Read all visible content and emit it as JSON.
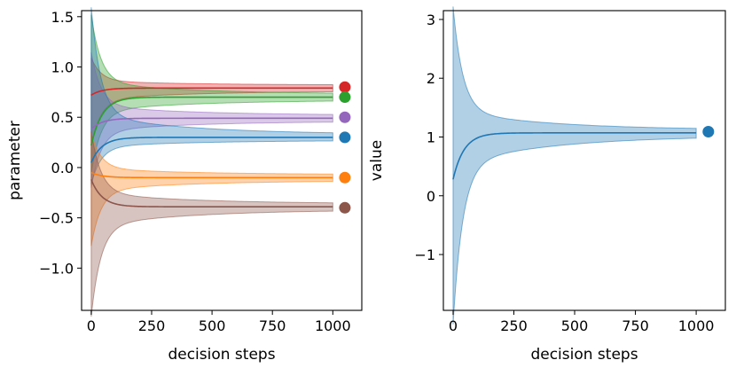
{
  "chart_data": [
    {
      "type": "line",
      "panel": "left",
      "xlabel": "decision steps",
      "ylabel": "parameter",
      "xlim": [
        -40,
        1120
      ],
      "ylim": [
        -1.42,
        1.56
      ],
      "xticks": [
        0,
        250,
        500,
        750,
        1000
      ],
      "yticks": [
        -1.0,
        -0.5,
        0.0,
        0.5,
        1.0,
        1.5
      ],
      "xtick_labels": [
        "0",
        "250",
        "500",
        "750",
        "1000"
      ],
      "ytick_labels": [
        "−1.0",
        "−0.5",
        "0.0",
        "0.5",
        "1.0",
        "1.5"
      ],
      "grid": false,
      "x_max": 1000,
      "series": [
        {
          "color": "#d62728",
          "start": 0.72,
          "end": 0.79,
          "band_start": [
            0.3,
            1.05
          ],
          "band_end_half": 0.03,
          "marker": {
            "x": 1050,
            "y": 0.8
          }
        },
        {
          "color": "#2ca02c",
          "start": 0.22,
          "end": 0.7,
          "band_start": [
            0.05,
            1.4
          ],
          "band_end_half": 0.03,
          "marker": {
            "x": 1050,
            "y": 0.7
          }
        },
        {
          "color": "#9467bd",
          "start": 0.38,
          "end": 0.49,
          "band_start": [
            -0.1,
            1.05
          ],
          "band_end_half": 0.03,
          "marker": {
            "x": 1050,
            "y": 0.5
          }
        },
        {
          "color": "#1f77b4",
          "start": 0.05,
          "end": 0.3,
          "band_start": [
            -0.1,
            1.4
          ],
          "band_end_half": 0.03,
          "marker": {
            "x": 1050,
            "y": 0.3
          }
        },
        {
          "color": "#ff7f0e",
          "start": -0.05,
          "end": -0.1,
          "band_start": [
            -0.68,
            0.28
          ],
          "band_end_half": 0.03,
          "marker": {
            "x": 1050,
            "y": -0.1
          }
        },
        {
          "color": "#8c564b",
          "start": -0.12,
          "end": -0.39,
          "band_start": [
            -1.32,
            0.25
          ],
          "band_end_half": 0.03,
          "marker": {
            "x": 1050,
            "y": -0.4
          }
        }
      ]
    },
    {
      "type": "line",
      "panel": "right",
      "xlabel": "decision steps",
      "ylabel": "value",
      "xlim": [
        -40,
        1120
      ],
      "ylim": [
        -1.95,
        3.15
      ],
      "xticks": [
        0,
        250,
        500,
        750,
        1000
      ],
      "yticks": [
        -1,
        0,
        1,
        2,
        3
      ],
      "xtick_labels": [
        "0",
        "250",
        "500",
        "750",
        "1000"
      ],
      "ytick_labels": [
        "−1",
        "0",
        "1",
        "2",
        "3"
      ],
      "grid": false,
      "x_max": 1000,
      "series": [
        {
          "color": "#1f77b4",
          "start": 0.28,
          "end": 1.07,
          "band_start": [
            -1.7,
            2.9
          ],
          "band_end_half": 0.05,
          "marker": {
            "x": 1050,
            "y": 1.09
          }
        }
      ]
    }
  ]
}
